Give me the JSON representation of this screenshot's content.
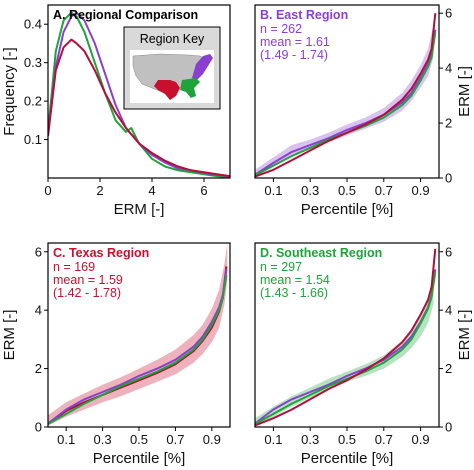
{
  "colors": {
    "east": "#8A3FD1",
    "texas": "#C8102E",
    "southeast": "#1FA33A",
    "all": "#B0103A",
    "us": "#c0c0c0"
  },
  "chart_data": [
    {
      "id": "A",
      "type": "line",
      "title": "A. Regional Comparison",
      "xlabel": "ERM [-]",
      "ylabel": "Frequency [-]",
      "xlim": [
        0,
        7
      ],
      "ylim": [
        0,
        0.45
      ],
      "xticks": [
        "0",
        "2",
        "4",
        "6"
      ],
      "xtick_values": [
        0,
        2,
        4,
        6
      ],
      "yticks": [
        "0.1",
        "0.2",
        "0.3",
        "0.4"
      ],
      "ytick_values": [
        0.1,
        0.2,
        0.3,
        0.4
      ],
      "inset": {
        "title": "Region Key"
      },
      "series": [
        {
          "color_key": "southeast",
          "x": [
            0,
            0.3,
            0.6,
            0.9,
            1.1,
            1.4,
            1.8,
            2.2,
            2.6,
            3.0,
            3.2,
            3.5,
            4.0,
            4.5,
            5.0,
            5.5,
            6.0,
            6.5,
            7.0
          ],
          "y": [
            0.12,
            0.33,
            0.41,
            0.43,
            0.42,
            0.38,
            0.3,
            0.22,
            0.15,
            0.12,
            0.13,
            0.09,
            0.05,
            0.03,
            0.02,
            0.015,
            0.01,
            0.005,
            0.002
          ]
        },
        {
          "color_key": "east",
          "x": [
            0,
            0.3,
            0.6,
            0.9,
            1.1,
            1.4,
            1.8,
            2.2,
            2.6,
            3.0,
            3.5,
            4.0,
            4.5,
            5.0,
            5.5,
            6.0,
            6.5,
            7.0
          ],
          "y": [
            0.11,
            0.29,
            0.38,
            0.42,
            0.43,
            0.41,
            0.35,
            0.27,
            0.19,
            0.13,
            0.09,
            0.06,
            0.04,
            0.025,
            0.02,
            0.013,
            0.008,
            0.004
          ]
        },
        {
          "color_key": "all",
          "x": [
            0,
            0.3,
            0.6,
            0.9,
            1.1,
            1.4,
            1.8,
            2.2,
            2.6,
            3.0,
            3.5,
            4.0,
            4.5,
            5.0,
            5.5,
            6.0,
            6.5,
            7.0
          ],
          "y": [
            0.11,
            0.28,
            0.34,
            0.36,
            0.35,
            0.33,
            0.28,
            0.22,
            0.17,
            0.13,
            0.09,
            0.065,
            0.045,
            0.03,
            0.02,
            0.015,
            0.01,
            0.005
          ]
        }
      ]
    },
    {
      "id": "B",
      "type": "area",
      "title": "B. East Region",
      "title_color_key": "east",
      "stats": [
        "n = 262",
        "mean = 1.61",
        "(1.49 - 1.74)"
      ],
      "xlabel": "Percentile [%]",
      "ylabel": "ERM [-]",
      "xlim": [
        0,
        1
      ],
      "ylim": [
        0,
        6.3
      ],
      "xticks": [
        "0.1",
        "0.3",
        "0.5",
        "0.7",
        "0.9"
      ],
      "xtick_values": [
        0.1,
        0.3,
        0.5,
        0.7,
        0.9
      ],
      "yticks": [
        "0",
        "2",
        "4",
        "6"
      ],
      "ytick_values": [
        0,
        2,
        4,
        6
      ],
      "band_color_key": "east",
      "band": {
        "x": [
          0.0,
          0.1,
          0.2,
          0.3,
          0.4,
          0.5,
          0.6,
          0.7,
          0.8,
          0.85,
          0.9,
          0.94,
          0.97
        ],
        "lower": [
          0.05,
          0.4,
          0.8,
          1.05,
          1.3,
          1.55,
          1.8,
          2.05,
          2.45,
          2.8,
          3.3,
          3.7,
          4.4
        ],
        "upper": [
          0.3,
          0.75,
          1.2,
          1.4,
          1.65,
          1.95,
          2.2,
          2.55,
          3.1,
          3.55,
          4.1,
          4.7,
          5.6
        ]
      },
      "series": [
        {
          "color_key": "east",
          "x": [
            0.0,
            0.1,
            0.2,
            0.3,
            0.4,
            0.5,
            0.6,
            0.7,
            0.8,
            0.85,
            0.9,
            0.94,
            0.96,
            0.98
          ],
          "y": [
            0.12,
            0.55,
            0.95,
            1.2,
            1.45,
            1.75,
            2.0,
            2.3,
            2.75,
            3.1,
            3.65,
            4.15,
            4.5,
            5.4
          ]
        },
        {
          "color_key": "southeast",
          "x": [
            0.0,
            0.1,
            0.2,
            0.3,
            0.4,
            0.5,
            0.6,
            0.7,
            0.8,
            0.85,
            0.9,
            0.94,
            0.96,
            0.98
          ],
          "y": [
            0.1,
            0.45,
            0.8,
            1.1,
            1.4,
            1.65,
            1.9,
            2.2,
            2.65,
            3.0,
            3.55,
            4.05,
            4.4,
            5.3
          ]
        },
        {
          "color_key": "all",
          "x": [
            0.0,
            0.1,
            0.2,
            0.3,
            0.4,
            0.5,
            0.6,
            0.7,
            0.8,
            0.85,
            0.9,
            0.94,
            0.96,
            0.98
          ],
          "y": [
            0.05,
            0.3,
            0.65,
            1.0,
            1.35,
            1.65,
            1.95,
            2.3,
            2.85,
            3.25,
            3.8,
            4.3,
            4.7,
            6.0
          ]
        }
      ]
    },
    {
      "id": "C",
      "type": "area",
      "title": "C. Texas Region",
      "title_color_key": "texas",
      "stats": [
        "n = 169",
        "mean = 1.59",
        "(1.42 - 1.78)"
      ],
      "xlabel": "Percentile [%]",
      "ylabel": "ERM [-]",
      "xlim": [
        0,
        1
      ],
      "ylim": [
        0,
        6.3
      ],
      "xticks": [
        "0.1",
        "0.3",
        "0.5",
        "0.7",
        "0.9"
      ],
      "xtick_values": [
        0.1,
        0.3,
        0.5,
        0.7,
        0.9
      ],
      "yticks": [
        "0",
        "2",
        "4",
        "6"
      ],
      "ytick_values": [
        0,
        2,
        4,
        6
      ],
      "band_color_key": "texas",
      "band": {
        "x": [
          0.0,
          0.1,
          0.2,
          0.3,
          0.4,
          0.5,
          0.6,
          0.7,
          0.8,
          0.85,
          0.9,
          0.94,
          0.97,
          0.985
        ],
        "lower": [
          0.05,
          0.35,
          0.6,
          0.85,
          1.05,
          1.3,
          1.55,
          1.8,
          2.2,
          2.5,
          2.9,
          3.4,
          4.2,
          5.0
        ],
        "upper": [
          0.4,
          0.85,
          1.15,
          1.45,
          1.7,
          2.0,
          2.3,
          2.65,
          3.15,
          3.5,
          4.05,
          4.7,
          5.6,
          6.3
        ]
      },
      "series": [
        {
          "color_key": "all",
          "x": [
            0.0,
            0.1,
            0.2,
            0.3,
            0.4,
            0.5,
            0.6,
            0.7,
            0.8,
            0.85,
            0.9,
            0.94,
            0.96,
            0.98
          ],
          "y": [
            0.12,
            0.55,
            0.85,
            1.1,
            1.35,
            1.6,
            1.85,
            2.15,
            2.6,
            2.95,
            3.4,
            3.95,
            4.4,
            5.5
          ]
        },
        {
          "color_key": "east",
          "x": [
            0.0,
            0.1,
            0.2,
            0.3,
            0.4,
            0.5,
            0.6,
            0.7,
            0.8,
            0.85,
            0.9,
            0.94,
            0.96,
            0.98
          ],
          "y": [
            0.12,
            0.6,
            0.95,
            1.2,
            1.45,
            1.75,
            2.0,
            2.3,
            2.75,
            3.1,
            3.6,
            4.1,
            4.5,
            5.4
          ]
        },
        {
          "color_key": "southeast",
          "x": [
            0.0,
            0.1,
            0.2,
            0.3,
            0.4,
            0.5,
            0.6,
            0.7,
            0.8,
            0.85,
            0.9,
            0.94,
            0.96,
            0.98
          ],
          "y": [
            0.1,
            0.45,
            0.8,
            1.1,
            1.4,
            1.65,
            1.9,
            2.2,
            2.65,
            3.0,
            3.5,
            4.0,
            4.4,
            5.2
          ]
        }
      ]
    },
    {
      "id": "D",
      "type": "area",
      "title": "D. Southeast Region",
      "title_color_key": "southeast",
      "stats": [
        "n = 297",
        "mean = 1.54",
        "(1.43 - 1.66)"
      ],
      "xlabel": "Percentile [%]",
      "ylabel": "ERM [-]",
      "xlim": [
        0,
        1
      ],
      "ylim": [
        0,
        6.3
      ],
      "xticks": [
        "0.1",
        "0.3",
        "0.5",
        "0.7",
        "0.9"
      ],
      "xtick_values": [
        0.1,
        0.3,
        0.5,
        0.7,
        0.9
      ],
      "yticks": [
        "0",
        "2",
        "4",
        "6"
      ],
      "ytick_values": [
        0,
        2,
        4,
        6
      ],
      "band_color_key": "southeast",
      "band": {
        "x": [
          0.0,
          0.1,
          0.2,
          0.3,
          0.4,
          0.5,
          0.6,
          0.7,
          0.8,
          0.85,
          0.9,
          0.94,
          0.97
        ],
        "lower": [
          0.05,
          0.35,
          0.7,
          1.0,
          1.3,
          1.55,
          1.75,
          2.0,
          2.4,
          2.7,
          3.1,
          3.55,
          4.2
        ],
        "upper": [
          0.3,
          0.7,
          1.05,
          1.35,
          1.65,
          1.9,
          2.15,
          2.45,
          2.95,
          3.3,
          3.85,
          4.4,
          5.2
        ]
      },
      "series": [
        {
          "color_key": "east",
          "x": [
            0.0,
            0.1,
            0.2,
            0.3,
            0.4,
            0.5,
            0.6,
            0.7,
            0.8,
            0.85,
            0.9,
            0.94,
            0.96,
            0.98
          ],
          "y": [
            0.12,
            0.6,
            0.95,
            1.2,
            1.45,
            1.75,
            2.0,
            2.3,
            2.75,
            3.1,
            3.6,
            4.1,
            4.5,
            5.4
          ]
        },
        {
          "color_key": "southeast",
          "x": [
            0.0,
            0.1,
            0.2,
            0.3,
            0.4,
            0.5,
            0.6,
            0.7,
            0.8,
            0.85,
            0.9,
            0.94,
            0.96,
            0.98
          ],
          "y": [
            0.1,
            0.45,
            0.8,
            1.1,
            1.4,
            1.65,
            1.9,
            2.2,
            2.65,
            3.0,
            3.55,
            4.05,
            4.45,
            5.3
          ]
        },
        {
          "color_key": "all",
          "x": [
            0.0,
            0.1,
            0.2,
            0.3,
            0.4,
            0.5,
            0.6,
            0.7,
            0.8,
            0.85,
            0.9,
            0.94,
            0.96,
            0.98
          ],
          "y": [
            0.05,
            0.3,
            0.6,
            0.95,
            1.3,
            1.6,
            1.95,
            2.35,
            2.9,
            3.3,
            3.85,
            4.35,
            4.8,
            6.1
          ]
        }
      ]
    }
  ]
}
